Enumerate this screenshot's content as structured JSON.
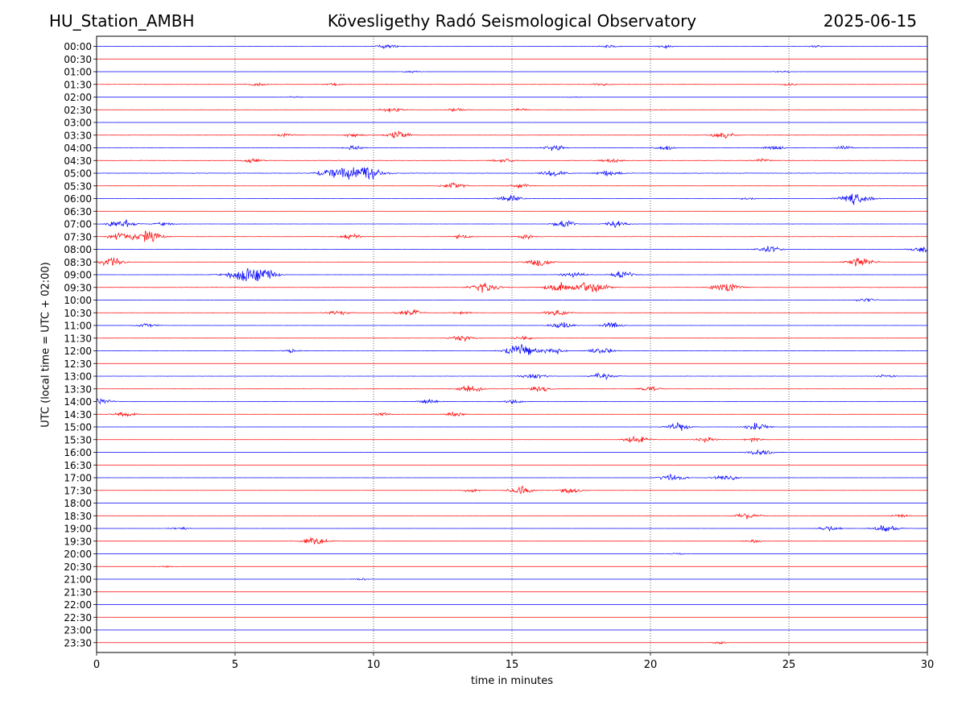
{
  "header": {
    "station": "HU_Station_AMBH",
    "title": "Kövesligethy Radó Seismological Observatory",
    "date": "2025-06-15"
  },
  "chart_data": {
    "type": "line",
    "xlabel": "time in minutes",
    "ylabel": "UTC (local time = UTC + 02:00)",
    "xlim": [
      0,
      30
    ],
    "xticks": [
      0,
      5,
      10,
      15,
      20,
      25,
      30
    ],
    "grid": "vertical dotted lines at x = 5, 10, 15, 20, 25",
    "colors": {
      "even_rows": "#0000ff",
      "odd_rows": "#ff0000",
      "grid": "#000000"
    },
    "rows": [
      {
        "label": "00:00",
        "activity": 0.15,
        "events": [
          [
            10.5,
            0.2
          ],
          [
            18.5,
            0.15
          ],
          [
            20.5,
            0.15
          ],
          [
            26,
            0.1
          ]
        ]
      },
      {
        "label": "00:30",
        "activity": 0.05,
        "events": []
      },
      {
        "label": "01:00",
        "activity": 0.05,
        "events": [
          [
            11.4,
            0.1
          ],
          [
            24.8,
            0.1
          ]
        ]
      },
      {
        "label": "01:30",
        "activity": 0.18,
        "events": [
          [
            5.8,
            0.15
          ],
          [
            8.5,
            0.12
          ],
          [
            18.2,
            0.12
          ],
          [
            25,
            0.1
          ]
        ]
      },
      {
        "label": "02:00",
        "activity": 0.05,
        "events": [
          [
            7.1,
            0.08
          ],
          [
            17.2,
            0.08
          ]
        ]
      },
      {
        "label": "02:30",
        "activity": 0.14,
        "events": [
          [
            10.7,
            0.25
          ],
          [
            13,
            0.15
          ],
          [
            15.3,
            0.1
          ]
        ]
      },
      {
        "label": "03:00",
        "activity": 0.05,
        "events": []
      },
      {
        "label": "03:30",
        "activity": 0.2,
        "events": [
          [
            10.9,
            0.35
          ],
          [
            9.3,
            0.2
          ],
          [
            22.6,
            0.3
          ],
          [
            6.8,
            0.15
          ]
        ]
      },
      {
        "label": "04:00",
        "activity": 0.2,
        "events": [
          [
            9.3,
            0.2
          ],
          [
            16.5,
            0.3
          ],
          [
            20.5,
            0.2
          ],
          [
            24.5,
            0.2
          ],
          [
            27,
            0.15
          ]
        ]
      },
      {
        "label": "04:30",
        "activity": 0.35,
        "events": [
          [
            5.6,
            0.2
          ],
          [
            14.7,
            0.2
          ],
          [
            18.6,
            0.2
          ],
          [
            24,
            0.15
          ]
        ]
      },
      {
        "label": "05:00",
        "activity": 0.4,
        "events": [
          [
            9.5,
            0.9
          ],
          [
            8.4,
            0.35
          ],
          [
            16.5,
            0.3
          ],
          [
            18.5,
            0.3
          ]
        ]
      },
      {
        "label": "05:30",
        "activity": 0.15,
        "events": [
          [
            12.9,
            0.3
          ],
          [
            15.3,
            0.2
          ]
        ]
      },
      {
        "label": "06:00",
        "activity": 0.15,
        "events": [
          [
            14.9,
            0.35
          ],
          [
            27.4,
            0.6
          ],
          [
            23.5,
            0.12
          ]
        ]
      },
      {
        "label": "06:30",
        "activity": 0.08,
        "events": []
      },
      {
        "label": "07:00",
        "activity": 0.15,
        "events": [
          [
            0.9,
            0.4
          ],
          [
            2.5,
            0.2
          ],
          [
            16.9,
            0.3
          ],
          [
            18.8,
            0.3
          ]
        ]
      },
      {
        "label": "07:30",
        "activity": 0.2,
        "events": [
          [
            1.8,
            0.55
          ],
          [
            0.9,
            0.35
          ],
          [
            9.2,
            0.25
          ],
          [
            13.2,
            0.2
          ],
          [
            15.5,
            0.2
          ]
        ]
      },
      {
        "label": "08:00",
        "activity": 0.12,
        "events": [
          [
            24.3,
            0.3
          ],
          [
            29.8,
            0.3
          ]
        ]
      },
      {
        "label": "08:30",
        "activity": 0.12,
        "events": [
          [
            0.5,
            0.4
          ],
          [
            16,
            0.35
          ],
          [
            27.6,
            0.4
          ]
        ]
      },
      {
        "label": "09:00",
        "activity": 0.2,
        "events": [
          [
            5.4,
            0.75
          ],
          [
            6.2,
            0.3
          ],
          [
            17.2,
            0.3
          ],
          [
            19,
            0.3
          ]
        ]
      },
      {
        "label": "09:30",
        "activity": 0.25,
        "events": [
          [
            14,
            0.45
          ],
          [
            16.7,
            0.45
          ],
          [
            17.9,
            0.55
          ],
          [
            22.7,
            0.45
          ]
        ]
      },
      {
        "label": "10:00",
        "activity": 0.08,
        "events": [
          [
            27.8,
            0.2
          ]
        ]
      },
      {
        "label": "10:30",
        "activity": 0.15,
        "events": [
          [
            11.3,
            0.35
          ],
          [
            8.7,
            0.25
          ],
          [
            13.2,
            0.15
          ],
          [
            16.6,
            0.3
          ]
        ]
      },
      {
        "label": "11:00",
        "activity": 0.1,
        "events": [
          [
            1.8,
            0.2
          ],
          [
            16.8,
            0.3
          ],
          [
            18.6,
            0.25
          ]
        ]
      },
      {
        "label": "11:30",
        "activity": 0.12,
        "events": [
          [
            13.2,
            0.3
          ],
          [
            15.4,
            0.2
          ]
        ]
      },
      {
        "label": "12:00",
        "activity": 0.15,
        "events": [
          [
            15.3,
            0.6
          ],
          [
            16.5,
            0.3
          ],
          [
            18.2,
            0.35
          ],
          [
            7,
            0.15
          ]
        ]
      },
      {
        "label": "12:30",
        "activity": 0.05,
        "events": []
      },
      {
        "label": "13:00",
        "activity": 0.15,
        "events": [
          [
            15.8,
            0.3
          ],
          [
            18.3,
            0.3
          ],
          [
            28.5,
            0.15
          ]
        ]
      },
      {
        "label": "13:30",
        "activity": 0.22,
        "events": [
          [
            13.5,
            0.35
          ],
          [
            16,
            0.25
          ],
          [
            20,
            0.2
          ]
        ]
      },
      {
        "label": "14:00",
        "activity": 0.25,
        "events": [
          [
            0.1,
            0.3
          ],
          [
            12,
            0.2
          ],
          [
            15,
            0.2
          ]
        ]
      },
      {
        "label": "14:30",
        "activity": 0.12,
        "events": [
          [
            1,
            0.25
          ],
          [
            12.9,
            0.2
          ],
          [
            10.3,
            0.15
          ]
        ]
      },
      {
        "label": "15:00",
        "activity": 0.08,
        "events": [
          [
            21,
            0.35
          ],
          [
            23.8,
            0.35
          ]
        ]
      },
      {
        "label": "15:30",
        "activity": 0.08,
        "events": [
          [
            19.5,
            0.35
          ],
          [
            22,
            0.25
          ],
          [
            23.7,
            0.2
          ]
        ]
      },
      {
        "label": "16:00",
        "activity": 0.06,
        "events": [
          [
            24,
            0.35
          ]
        ]
      },
      {
        "label": "16:30",
        "activity": 0.06,
        "events": []
      },
      {
        "label": "17:00",
        "activity": 0.1,
        "events": [
          [
            20.8,
            0.35
          ],
          [
            22.7,
            0.3
          ]
        ]
      },
      {
        "label": "17:30",
        "activity": 0.1,
        "events": [
          [
            15.3,
            0.35
          ],
          [
            17.1,
            0.3
          ],
          [
            13.5,
            0.15
          ]
        ]
      },
      {
        "label": "18:00",
        "activity": 0.05,
        "events": []
      },
      {
        "label": "18:30",
        "activity": 0.08,
        "events": [
          [
            23.5,
            0.3
          ],
          [
            29,
            0.15
          ]
        ]
      },
      {
        "label": "19:00",
        "activity": 0.08,
        "events": [
          [
            3,
            0.15
          ],
          [
            26.5,
            0.25
          ],
          [
            28.5,
            0.4
          ]
        ]
      },
      {
        "label": "19:30",
        "activity": 0.06,
        "events": [
          [
            7.9,
            0.4
          ],
          [
            23.7,
            0.15
          ]
        ]
      },
      {
        "label": "20:00",
        "activity": 0.04,
        "events": [
          [
            21,
            0.08
          ]
        ]
      },
      {
        "label": "20:30",
        "activity": 0.04,
        "events": [
          [
            2.5,
            0.08
          ]
        ]
      },
      {
        "label": "21:00",
        "activity": 0.04,
        "events": [
          [
            9.6,
            0.1
          ]
        ]
      },
      {
        "label": "21:30",
        "activity": 0.03,
        "events": []
      },
      {
        "label": "22:00",
        "activity": 0.03,
        "events": []
      },
      {
        "label": "22:30",
        "activity": 0.03,
        "events": []
      },
      {
        "label": "23:00",
        "activity": 0.03,
        "events": []
      },
      {
        "label": "23:30",
        "activity": 0.03,
        "events": [
          [
            22.5,
            0.12
          ]
        ]
      }
    ]
  }
}
